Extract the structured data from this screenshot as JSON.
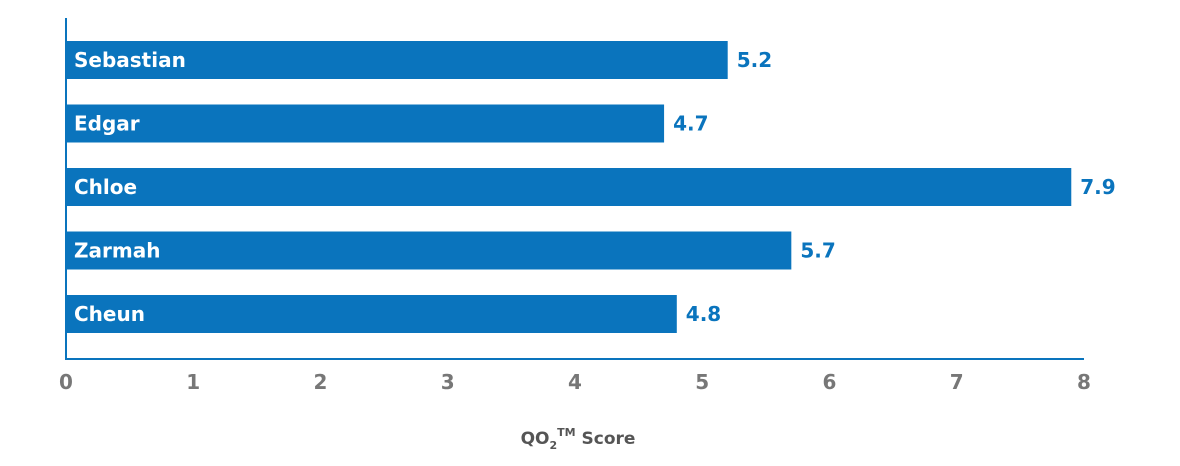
{
  "chart_data": {
    "type": "bar",
    "orientation": "horizontal",
    "categories": [
      "Sebastian",
      "Edgar",
      "Chloe",
      "Zarmah",
      "Cheun"
    ],
    "values": [
      5.2,
      4.7,
      7.9,
      5.7,
      4.8
    ],
    "value_labels": [
      "5.2",
      "4.7",
      "7.9",
      "5.7",
      "4.8"
    ],
    "xlim": [
      0,
      8
    ],
    "x_ticks": [
      "0",
      "1",
      "2",
      "3",
      "4",
      "5",
      "6",
      "7",
      "8"
    ],
    "title": "",
    "xlabel": {
      "main": "QO",
      "subscript": "2",
      "superscript": "TM",
      "suffix": " Score"
    },
    "ylabel": "",
    "grid": false,
    "colors": {
      "bar": "#0A74BD",
      "value_text": "#0A74BD",
      "axis": "#0A74BD",
      "bar_text": "#FFFFFF",
      "tick_text": "#777777"
    }
  }
}
